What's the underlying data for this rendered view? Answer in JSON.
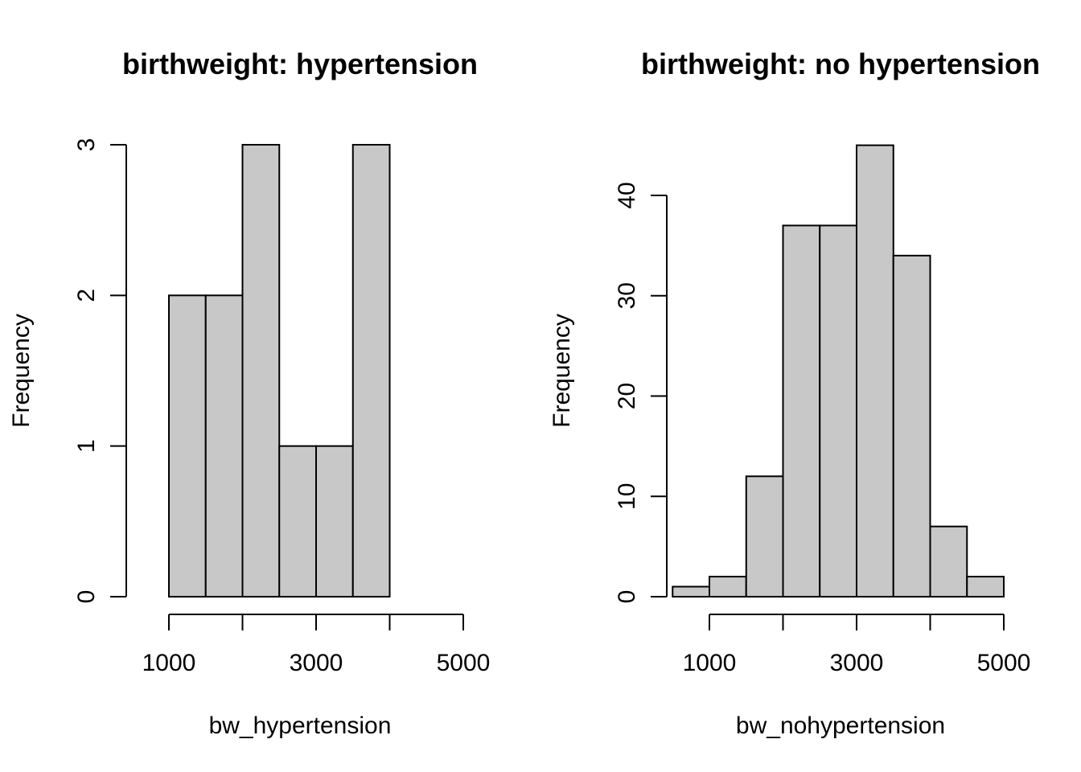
{
  "chart_data": [
    {
      "type": "bar",
      "title": "birthweight: hypertension",
      "xlabel": "bw_hypertension",
      "ylabel": "Frequency",
      "bins": [
        [
          1000,
          1500
        ],
        [
          1500,
          2000
        ],
        [
          2000,
          2500
        ],
        [
          2500,
          3000
        ],
        [
          3000,
          3500
        ],
        [
          3500,
          4000
        ]
      ],
      "values": [
        2,
        2,
        3,
        1,
        1,
        3
      ],
      "xlim": [
        1000,
        5000
      ],
      "ylim": [
        0,
        3
      ],
      "xticks": [
        1000,
        2000,
        3000,
        4000,
        5000
      ],
      "xtick_labels": [
        "1000",
        "",
        "3000",
        "",
        "5000"
      ],
      "yticks": [
        0,
        1,
        2,
        3
      ],
      "ytick_labels": [
        "0",
        "1",
        "2",
        "3"
      ],
      "bar_color": "#c8c8c8",
      "grid": false
    },
    {
      "type": "bar",
      "title": "birthweight: no hypertension",
      "xlabel": "bw_nohypertension",
      "ylabel": "Frequency",
      "bins": [
        [
          500,
          1000
        ],
        [
          1000,
          1500
        ],
        [
          1500,
          2000
        ],
        [
          2000,
          2500
        ],
        [
          2500,
          3000
        ],
        [
          3000,
          3500
        ],
        [
          3500,
          4000
        ],
        [
          4000,
          4500
        ],
        [
          4500,
          5000
        ]
      ],
      "values": [
        1,
        2,
        12,
        37,
        37,
        45,
        34,
        7,
        2
      ],
      "xlim": [
        1000,
        5000
      ],
      "ylim": [
        0,
        40
      ],
      "xticks": [
        1000,
        2000,
        3000,
        4000,
        5000
      ],
      "xtick_labels": [
        "1000",
        "",
        "3000",
        "",
        "5000"
      ],
      "yticks": [
        0,
        10,
        20,
        30,
        40
      ],
      "ytick_labels": [
        "0",
        "10",
        "20",
        "30",
        "40"
      ],
      "bar_color": "#c8c8c8",
      "grid": false
    }
  ]
}
